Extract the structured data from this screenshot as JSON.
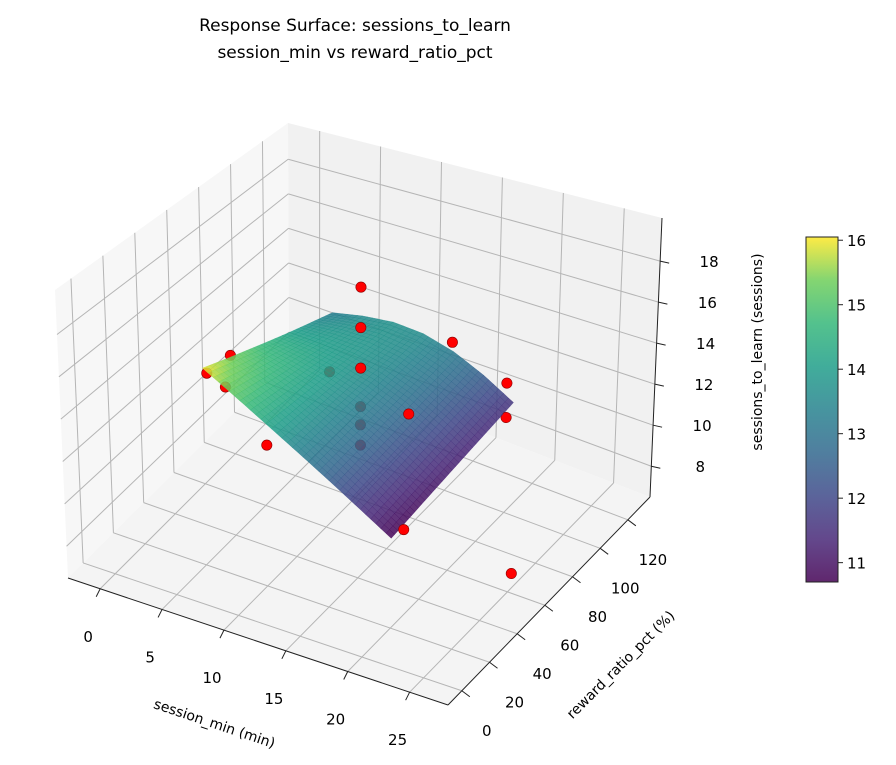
{
  "chart_data": {
    "type": "surface3d",
    "title": "Response Surface: sessions_to_learn",
    "subtitle": "session_min vs reward_ratio_pct",
    "xlabel": "session_min (min)",
    "ylabel": "reward_ratio_pct (%)",
    "zlabel": "sessions_to_learn (sessions)",
    "xlim": [
      -2.6,
      28.1
    ],
    "ylim": [
      -10,
      136
    ],
    "zlim": [
      6.5,
      20.1
    ],
    "xticks": [
      "0",
      "5",
      "10",
      "15",
      "20",
      "25"
    ],
    "yticks": [
      "0",
      "20",
      "40",
      "60",
      "80",
      "100",
      "120"
    ],
    "zticks": [
      "8",
      "10",
      "12",
      "14",
      "16",
      "18"
    ],
    "grid": true,
    "colormap": "viridis",
    "surface_alpha": 0.85,
    "surface": {
      "x": [
        5,
        7.5,
        10,
        12.5,
        15,
        17.5,
        20
      ],
      "y": [
        20,
        34.17,
        48.33,
        62.5,
        76.67,
        90.83,
        105
      ],
      "z": [
        [
          16.0,
          15.12,
          14.23,
          13.35,
          12.47,
          11.58,
          10.7
        ],
        [
          15.53,
          14.86,
          14.14,
          13.39,
          12.59,
          11.73,
          10.85
        ],
        [
          15.07,
          14.59,
          14.06,
          13.43,
          12.7,
          11.88,
          11.0
        ],
        [
          14.6,
          14.33,
          13.97,
          13.48,
          12.82,
          12.03,
          11.15
        ],
        [
          14.13,
          14.06,
          13.88,
          13.52,
          12.94,
          12.17,
          11.3
        ],
        [
          13.67,
          13.8,
          13.8,
          13.56,
          13.05,
          12.32,
          11.45
        ],
        [
          13.2,
          13.53,
          13.71,
          13.6,
          13.17,
          12.47,
          11.6
        ]
      ]
    },
    "points": {
      "color": "#ff0000",
      "edge_color": "#8b0000",
      "data": [
        [
          12.5,
          62.5,
          18.7
        ],
        [
          12.5,
          62.5,
          16.7
        ],
        [
          12.5,
          62.5,
          14.7
        ],
        [
          12.5,
          62.5,
          12.8
        ],
        [
          12.5,
          62.5,
          11.9
        ],
        [
          12.5,
          62.5,
          10.9
        ],
        [
          0,
          62.5,
          12.0
        ],
        [
          1,
          70,
          12.6
        ],
        [
          1.5,
          62.5,
          11.6
        ],
        [
          7,
          45,
          11.0
        ],
        [
          19,
          40,
          15.1
        ],
        [
          23,
          2,
          12.8
        ],
        [
          25,
          62.5,
          7.2
        ],
        [
          12.5,
          125,
          11.75
        ],
        [
          20,
          100,
          12.9
        ],
        [
          20,
          100,
          11.2
        ],
        [
          6,
          95,
          11.0
        ]
      ]
    },
    "colorbar": {
      "range": [
        10.7,
        16.05
      ],
      "ticks": [
        "11",
        "12",
        "13",
        "14",
        "15",
        "16"
      ]
    }
  }
}
